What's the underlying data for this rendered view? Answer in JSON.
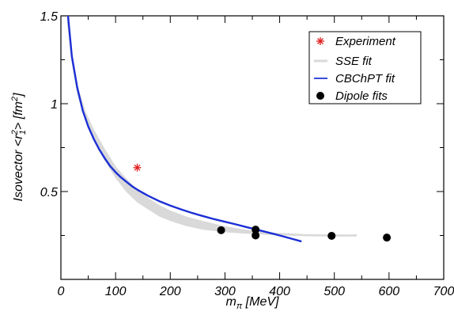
{
  "chart_data": {
    "type": "line",
    "xlabel": {
      "main": "m",
      "sub": "π",
      "unit": " [MeV]"
    },
    "ylabel": {
      "pre": "Isovector <r",
      "sup": "2",
      "sub": "1",
      "post": "> [fm",
      "unitSup": "2",
      "end": "]"
    },
    "xlim": [
      0,
      700
    ],
    "ylim": [
      0,
      1.5
    ],
    "xticks": [
      "0",
      "100",
      "200",
      "300",
      "400",
      "500",
      "600",
      "700"
    ],
    "yticks": [
      "0.5",
      "1",
      "1.5"
    ],
    "legend_position": "top-right",
    "grid": false,
    "series": [
      {
        "name": "Experiment",
        "kind": "marker-star",
        "color": "#e02020",
        "points": [
          [
            139.6,
            0.636
          ]
        ]
      },
      {
        "name": "SSE fit",
        "kind": "band",
        "color": "#d9d9d9",
        "upper": [
          [
            12,
            1.5
          ],
          [
            20,
            1.28
          ],
          [
            30,
            1.1
          ],
          [
            45,
            0.95
          ],
          [
            60,
            0.85
          ],
          [
            80,
            0.74
          ],
          [
            100,
            0.64
          ],
          [
            120,
            0.57
          ],
          [
            140,
            0.51
          ],
          [
            160,
            0.46
          ],
          [
            180,
            0.42
          ],
          [
            200,
            0.39
          ],
          [
            230,
            0.355
          ],
          [
            260,
            0.33
          ],
          [
            300,
            0.3
          ],
          [
            350,
            0.275
          ],
          [
            400,
            0.262
          ],
          [
            450,
            0.255
          ],
          [
            500,
            0.253
          ],
          [
            540,
            0.254
          ]
        ],
        "lower": [
          [
            12,
            1.46
          ],
          [
            20,
            1.24
          ],
          [
            30,
            1.06
          ],
          [
            45,
            0.91
          ],
          [
            60,
            0.8
          ],
          [
            80,
            0.68
          ],
          [
            100,
            0.58
          ],
          [
            120,
            0.5
          ],
          [
            140,
            0.44
          ],
          [
            160,
            0.4
          ],
          [
            180,
            0.36
          ],
          [
            200,
            0.335
          ],
          [
            230,
            0.305
          ],
          [
            260,
            0.285
          ],
          [
            300,
            0.27
          ],
          [
            350,
            0.26
          ],
          [
            400,
            0.253
          ],
          [
            450,
            0.248
          ],
          [
            500,
            0.246
          ],
          [
            540,
            0.246
          ]
        ]
      },
      {
        "name": "CBChPT fit",
        "kind": "line",
        "color": "#1c2fd6",
        "points": [
          [
            13,
            1.5
          ],
          [
            20,
            1.27
          ],
          [
            30,
            1.09
          ],
          [
            40,
            0.96
          ],
          [
            50,
            0.87
          ],
          [
            60,
            0.8
          ],
          [
            70,
            0.74
          ],
          [
            80,
            0.69
          ],
          [
            90,
            0.645
          ],
          [
            100,
            0.61
          ],
          [
            110,
            0.58
          ],
          [
            120,
            0.555
          ],
          [
            130,
            0.53
          ],
          [
            140,
            0.51
          ],
          [
            160,
            0.475
          ],
          [
            180,
            0.445
          ],
          [
            200,
            0.42
          ],
          [
            220,
            0.398
          ],
          [
            240,
            0.378
          ],
          [
            260,
            0.36
          ],
          [
            280,
            0.343
          ],
          [
            300,
            0.328
          ],
          [
            320,
            0.313
          ],
          [
            340,
            0.297
          ],
          [
            360,
            0.282
          ],
          [
            380,
            0.266
          ],
          [
            400,
            0.25
          ],
          [
            420,
            0.233
          ],
          [
            440,
            0.216
          ]
        ]
      },
      {
        "name": "Dipole fits",
        "kind": "marker-dot",
        "color": "#000000",
        "points": [
          [
            293,
            0.28
          ],
          [
            356,
            0.283
          ],
          [
            356,
            0.25
          ],
          [
            495,
            0.248
          ],
          [
            596,
            0.238
          ]
        ]
      }
    ]
  }
}
